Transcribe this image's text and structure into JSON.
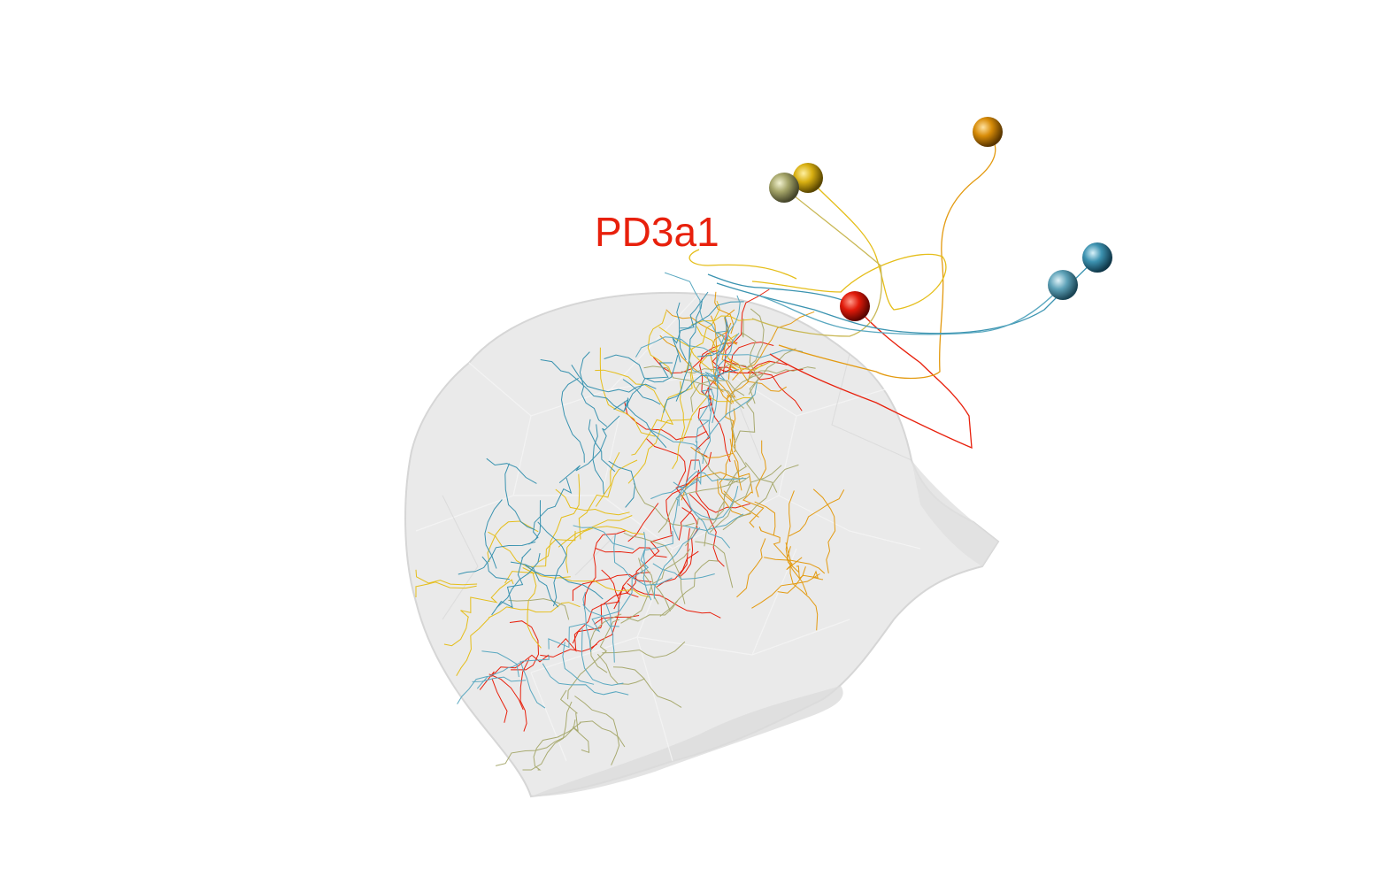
{
  "label": {
    "text": "PD3a1",
    "color": "#e8200c"
  },
  "mesh": {
    "fill": "#e7e7e7",
    "edge": "#d0d0d0"
  },
  "neurons": [
    {
      "name": "neuron-red",
      "color": "#e8200c"
    },
    {
      "name": "neuron-orange",
      "color": "#e39a10"
    },
    {
      "name": "neuron-gold",
      "color": "#e5be1a"
    },
    {
      "name": "neuron-olive",
      "color": "#a8aa70"
    },
    {
      "name": "neuron-blue-1",
      "color": "#3a93b0"
    },
    {
      "name": "neuron-blue-2",
      "color": "#5aa8c0"
    }
  ]
}
